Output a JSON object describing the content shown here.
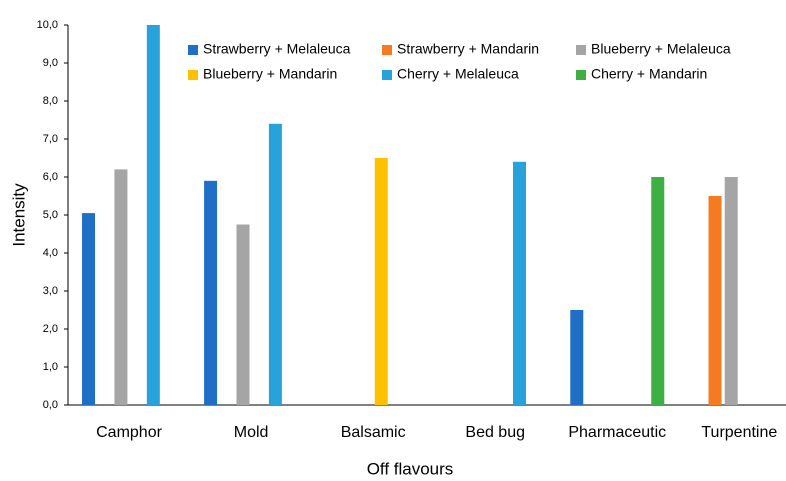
{
  "chart_data": {
    "type": "bar",
    "categories": [
      "Camphor",
      "Mold",
      "Balsamic",
      "Bed bug",
      "Pharmaceutic",
      "Turpentine"
    ],
    "series": [
      {
        "name": "Strawberry + Melaleuca",
        "color": "#1f6fc6",
        "values": [
          5.05,
          5.9,
          null,
          null,
          2.5,
          null
        ]
      },
      {
        "name": "Strawberry + Mandarin",
        "color": "#f47b20",
        "values": [
          null,
          null,
          null,
          null,
          null,
          5.5
        ]
      },
      {
        "name": "Blueberry + Melaleuca",
        "color": "#a5a5a5",
        "values": [
          6.2,
          4.75,
          null,
          null,
          null,
          6.0
        ]
      },
      {
        "name": "Blueberry + Mandarin",
        "color": "#ffc000",
        "values": [
          null,
          null,
          6.5,
          null,
          null,
          null
        ]
      },
      {
        "name": "Cherry + Melaleuca",
        "color": "#27a2db",
        "values": [
          10.0,
          7.4,
          null,
          6.4,
          null,
          null
        ]
      },
      {
        "name": "Cherry + Mandarin",
        "color": "#3cb043",
        "values": [
          null,
          null,
          null,
          null,
          6.0,
          null
        ]
      }
    ],
    "xlabel": "Off flavours",
    "ylabel": "Intensity",
    "ylim": [
      0,
      10
    ],
    "yticks": [
      {
        "value": 0,
        "label": "0,0"
      },
      {
        "value": 1,
        "label": "1,0"
      },
      {
        "value": 2,
        "label": "2,0"
      },
      {
        "value": 3,
        "label": "3,0"
      },
      {
        "value": 4,
        "label": "4,0"
      },
      {
        "value": 5,
        "label": "5,0"
      },
      {
        "value": 6,
        "label": "6,0"
      },
      {
        "value": 7,
        "label": "7,0"
      },
      {
        "value": 8,
        "label": "8,0"
      },
      {
        "value": 9,
        "label": "9,0"
      },
      {
        "value": 10,
        "label": "10,0"
      }
    ],
    "grid": false,
    "legend": "top"
  }
}
